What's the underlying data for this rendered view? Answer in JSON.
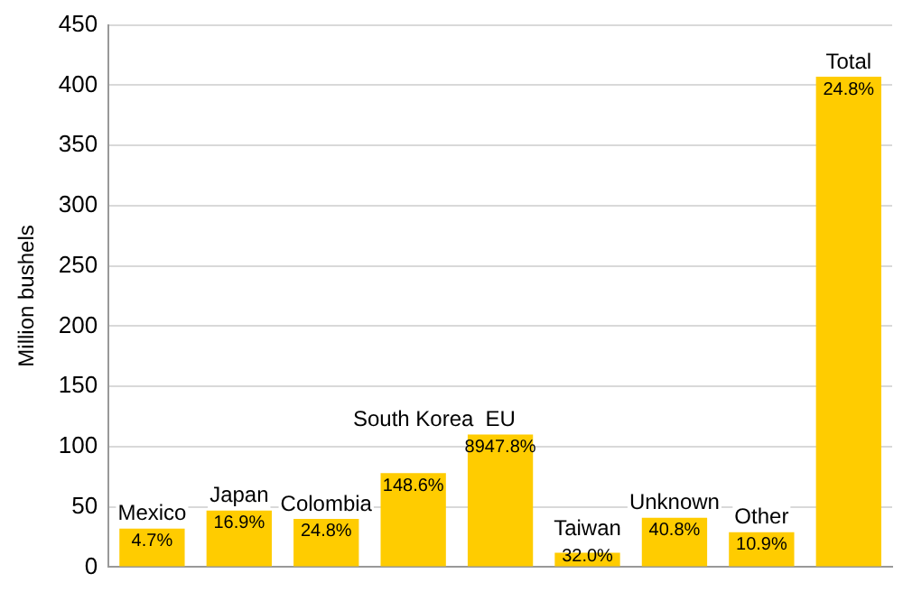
{
  "chart_data": {
    "type": "bar",
    "ylabel": "Million bushels",
    "categories": [
      "Mexico",
      "Japan",
      "Colombia",
      "South Korea",
      "EU",
      "Taiwan",
      "Unknown",
      "Other",
      "Total"
    ],
    "values": [
      32,
      47,
      40,
      78,
      110,
      12,
      41,
      29,
      407
    ],
    "annotations": [
      {
        "text": "4.7%",
        "x": "Mexico",
        "y": 32
      },
      {
        "text": "16.9%",
        "x": "Japan",
        "y": 47
      },
      {
        "text": "24.8%",
        "x": "Colombia",
        "y": 40
      },
      {
        "text": "148.6%",
        "x": "South Korea",
        "y": 78
      },
      {
        "text": "8947.8%",
        "x": "EU",
        "y": 110
      },
      {
        "text": "32.0%",
        "x": "Taiwan",
        "y": 12
      },
      {
        "text": "40.8%",
        "x": "Unknown",
        "y": 41
      },
      {
        "text": "10.9%",
        "x": "Other",
        "y": 29
      },
      {
        "text": "24.8%",
        "x": "Total",
        "y": 407
      }
    ],
    "color": "#ffcc00",
    "ylim": [
      0,
      450
    ],
    "yticks": [
      0,
      50,
      100,
      150,
      200,
      250,
      300,
      350,
      400,
      450
    ],
    "grid": "y",
    "legend": false
  }
}
